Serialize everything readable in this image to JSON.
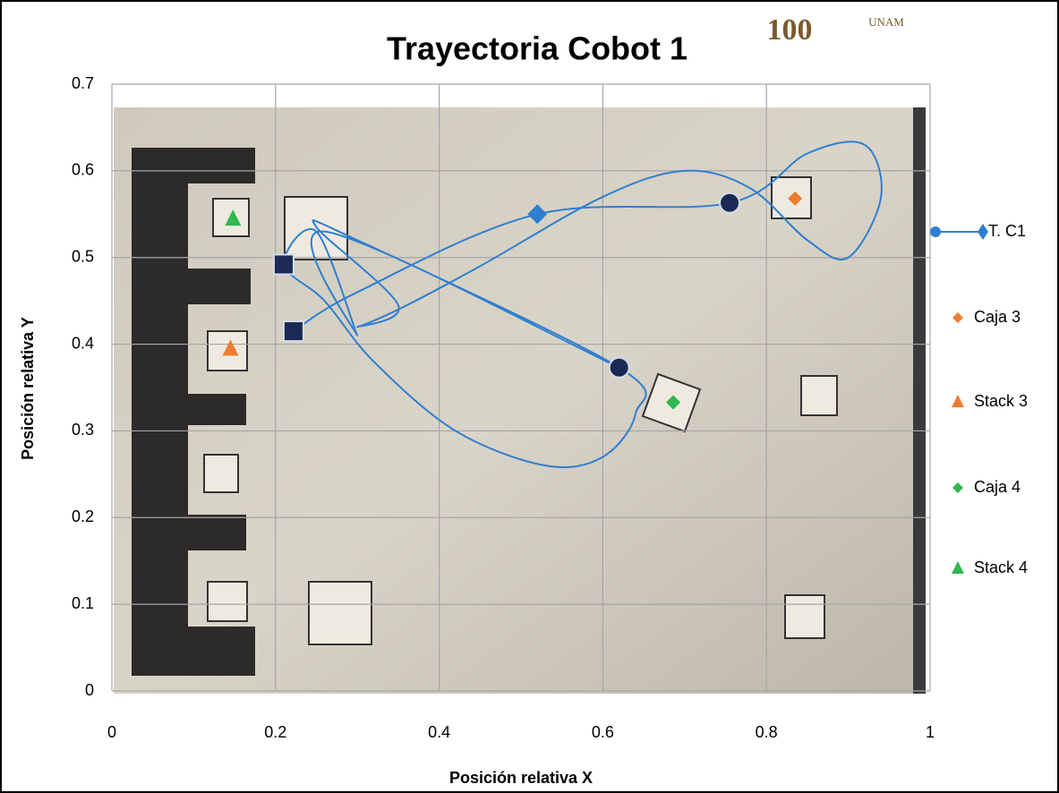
{
  "chart_data": {
    "type": "scatter",
    "title": "Trayectoria Cobot 1",
    "logo": {
      "number": "100",
      "text": "UNAM"
    },
    "x_label": "Posición relativa X",
    "y_label": "Posición relativa Y",
    "xlim": [
      0,
      1
    ],
    "ylim": [
      0,
      0.7
    ],
    "xticks": [
      0,
      0.2,
      0.4,
      0.6,
      0.8,
      1
    ],
    "yticks": [
      0,
      0.1,
      0.2,
      0.3,
      0.4,
      0.5,
      0.6,
      0.7
    ],
    "grid": true,
    "legend": "right",
    "series": [
      {
        "name": "T. C1",
        "color": "#2f7fd0",
        "line": true,
        "x": [
          0.222,
          0.3,
          0.52,
          0.755,
          0.85,
          0.92,
          0.94,
          0.9,
          0.85,
          0.78,
          0.7,
          0.6,
          0.45,
          0.35,
          0.3,
          0.35,
          0.25,
          0.3,
          0.62,
          0.64,
          0.6,
          0.53,
          0.42,
          0.32,
          0.26,
          0.21,
          0.25,
          0.3,
          0.26,
          0.62
        ],
        "values": [
          0.415,
          0.46,
          0.55,
          0.563,
          0.62,
          0.63,
          0.57,
          0.5,
          0.52,
          0.58,
          0.6,
          0.57,
          0.49,
          0.44,
          0.42,
          0.445,
          0.535,
          0.52,
          0.373,
          0.32,
          0.27,
          0.26,
          0.3,
          0.38,
          0.45,
          0.492,
          0.53,
          0.41,
          0.53,
          0.373
        ],
        "markers": [
          "square",
          null,
          "diamond",
          "circle",
          null,
          null,
          null,
          null,
          null,
          null,
          null,
          null,
          null,
          null,
          null,
          null,
          null,
          null,
          "circle",
          null,
          null,
          null,
          null,
          null,
          null,
          "square",
          null,
          null,
          null,
          null
        ]
      },
      {
        "name": "Caja 3",
        "color": "#ed7d31",
        "marker": "diamond",
        "x": [
          0.835
        ],
        "values": [
          0.568
        ]
      },
      {
        "name": "Stack 3",
        "color": "#ed7d31",
        "marker": "triangle",
        "x": [
          0.145
        ],
        "values": [
          0.395
        ]
      },
      {
        "name": "Caja 4",
        "color": "#2fb84f",
        "marker": "diamond",
        "x": [
          0.686
        ],
        "values": [
          0.333
        ]
      },
      {
        "name": "Stack 4",
        "color": "#2fb84f",
        "marker": "triangle",
        "x": [
          0.148
        ],
        "values": [
          0.545
        ]
      }
    ]
  }
}
